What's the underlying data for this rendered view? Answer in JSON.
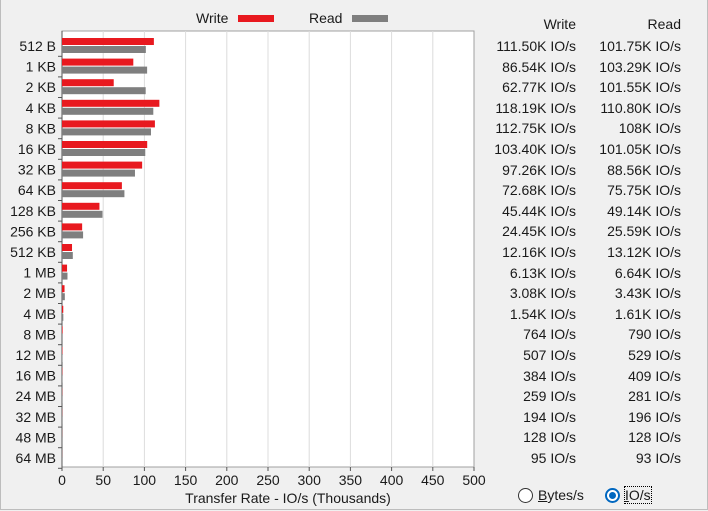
{
  "legend": {
    "write_label": "Write",
    "read_label": "Read",
    "write_color": "#e8191f",
    "read_color": "#7f7f7f"
  },
  "table": {
    "write_header": "Write",
    "read_header": "Read",
    "rows": [
      {
        "write": "111.50K IO/s",
        "read": "101.75K IO/s"
      },
      {
        "write": "86.54K IO/s",
        "read": "103.29K IO/s"
      },
      {
        "write": "62.77K IO/s",
        "read": "101.55K IO/s"
      },
      {
        "write": "118.19K IO/s",
        "read": "110.80K IO/s"
      },
      {
        "write": "112.75K IO/s",
        "read": "108K IO/s"
      },
      {
        "write": "103.40K IO/s",
        "read": "101.05K IO/s"
      },
      {
        "write": "97.26K IO/s",
        "read": "88.56K IO/s"
      },
      {
        "write": "72.68K IO/s",
        "read": "75.75K IO/s"
      },
      {
        "write": "45.44K IO/s",
        "read": "49.14K IO/s"
      },
      {
        "write": "24.45K IO/s",
        "read": "25.59K IO/s"
      },
      {
        "write": "12.16K IO/s",
        "read": "13.12K IO/s"
      },
      {
        "write": "6.13K IO/s",
        "read": "6.64K IO/s"
      },
      {
        "write": "3.08K IO/s",
        "read": "3.43K IO/s"
      },
      {
        "write": "1.54K IO/s",
        "read": "1.61K IO/s"
      },
      {
        "write": "764 IO/s",
        "read": "790 IO/s"
      },
      {
        "write": "507 IO/s",
        "read": "529 IO/s"
      },
      {
        "write": "384 IO/s",
        "read": "409 IO/s"
      },
      {
        "write": "259 IO/s",
        "read": "281 IO/s"
      },
      {
        "write": "194 IO/s",
        "read": "196 IO/s"
      },
      {
        "write": "128 IO/s",
        "read": "128 IO/s"
      },
      {
        "write": "95 IO/s",
        "read": "93 IO/s"
      }
    ]
  },
  "units_toggle": {
    "bytes_label_ul": "B",
    "bytes_label_rest": "ytes/s",
    "ios_label_ul": "I",
    "ios_label_rest": "O/s",
    "selected": "IO/s"
  },
  "chart_data": {
    "type": "bar",
    "orientation": "horizontal",
    "xlabel": "Transfer Rate - IO/s (Thousands)",
    "xlim": [
      0,
      500
    ],
    "xticks": [
      0,
      50,
      100,
      150,
      200,
      250,
      300,
      350,
      400,
      450,
      500
    ],
    "grid": true,
    "legend_position": "top",
    "categories": [
      "512 B",
      "1 KB",
      "2 KB",
      "4 KB",
      "8 KB",
      "16 KB",
      "32 KB",
      "64 KB",
      "128 KB",
      "256 KB",
      "512 KB",
      "1 MB",
      "2 MB",
      "4 MB",
      "8 MB",
      "12 MB",
      "16 MB",
      "24 MB",
      "32 MB",
      "48 MB",
      "64 MB"
    ],
    "series": [
      {
        "name": "Write",
        "values": [
          111.5,
          86.54,
          62.77,
          118.19,
          112.75,
          103.4,
          97.26,
          72.68,
          45.44,
          24.45,
          12.16,
          6.13,
          3.08,
          1.54,
          0.764,
          0.507,
          0.384,
          0.259,
          0.194,
          0.128,
          0.095
        ]
      },
      {
        "name": "Read",
        "values": [
          101.75,
          103.29,
          101.55,
          110.8,
          108.0,
          101.05,
          88.56,
          75.75,
          49.14,
          25.59,
          13.12,
          6.64,
          3.43,
          1.61,
          0.79,
          0.529,
          0.409,
          0.281,
          0.196,
          0.128,
          0.093
        ]
      }
    ]
  }
}
